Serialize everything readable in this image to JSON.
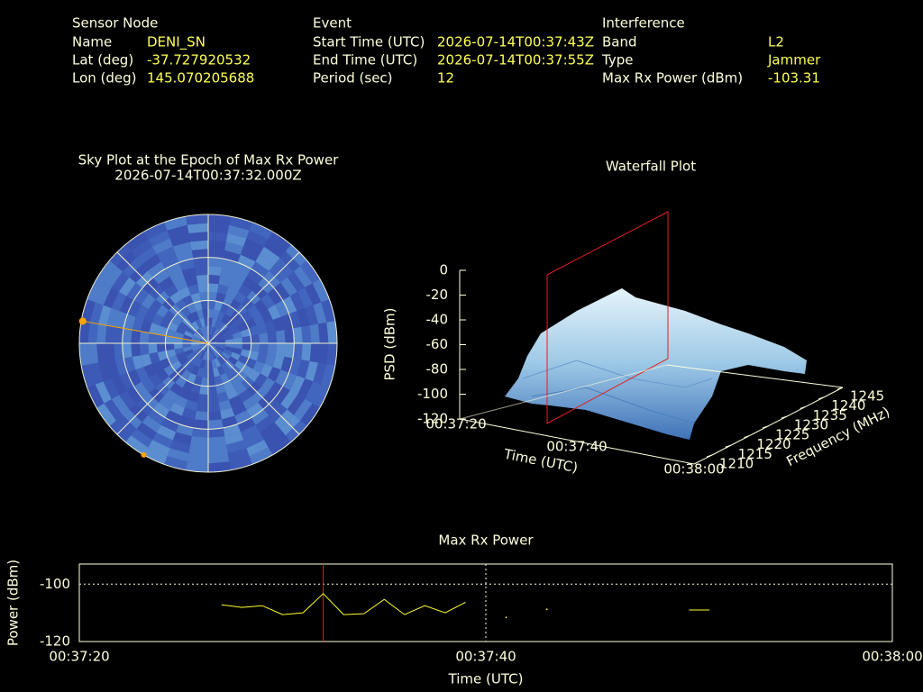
{
  "header": {
    "sensor": {
      "title": "Sensor Node",
      "fields": [
        {
          "label": "Name",
          "value": "DENI_SN"
        },
        {
          "label": "Lat (deg)",
          "value": "-37.727920532"
        },
        {
          "label": "Lon (deg)",
          "value": "145.070205688"
        }
      ]
    },
    "event": {
      "title": "Event",
      "fields": [
        {
          "label": "Start Time (UTC)",
          "value": "2026-07-14T00:37:43Z"
        },
        {
          "label": "End Time (UTC)",
          "value": "2026-07-14T00:37:55Z"
        },
        {
          "label": "Period (sec)",
          "value": "12"
        }
      ]
    },
    "interference": {
      "title": "Interference",
      "fields": [
        {
          "label": "Band",
          "value": "L2"
        },
        {
          "label": "Type",
          "value": "Jammer"
        },
        {
          "label": "Max Rx Power (dBm)",
          "value": "-103.31"
        }
      ]
    }
  },
  "chart_data": [
    {
      "type": "polar",
      "title": "Sky Plot at the Epoch of Max Rx Power",
      "subtitle": "2026-07-14T00:37:32.000Z",
      "rlim": [
        90,
        0
      ],
      "rticks": [
        60,
        30,
        0
      ],
      "azimuth": [
        280,
        210
      ],
      "elevation": [
        1,
        0
      ],
      "color": "#ffa500"
    },
    {
      "type": "surface",
      "title": "Waterfall Plot",
      "xlabel": "Time (UTC)",
      "ylabel": "Frequency (MHz)",
      "zlabel": "PSD (dBm)",
      "xticks": [
        "00:37:20",
        "00:37:40",
        "00:38:00"
      ],
      "ylim": [
        1210,
        1245
      ],
      "yticks": [
        1210,
        1215,
        1220,
        1225,
        1230,
        1235,
        1240,
        1245
      ],
      "zlim": [
        -120,
        0
      ],
      "zticks": [
        0,
        -20,
        -40,
        -60,
        -80,
        -100,
        -120
      ]
    },
    {
      "type": "line",
      "title": "Max Rx Power",
      "xlabel": "Time (UTC)",
      "ylabel": "Power (dBm)",
      "xlim": [
        "00:37:20",
        "00:38:00"
      ],
      "xticks": [
        "00:37:20",
        "00:37:40",
        "00:38:00"
      ],
      "ylim": [
        -120,
        -93
      ],
      "yticks": [
        -100,
        -120
      ],
      "grid": true,
      "color": "#ffff33",
      "x": [
        "00:37:27",
        "00:37:28",
        "00:37:29",
        "00:37:30",
        "00:37:31",
        "00:37:32",
        "00:37:33",
        "00:37:34",
        "00:37:35",
        "00:37:36",
        "00:37:37",
        "00:37:38",
        "00:37:39",
        "00:37:40",
        "00:37:41",
        "00:37:42",
        "00:37:43",
        "00:37:44",
        "00:37:45",
        "00:37:46",
        "00:37:47",
        "00:37:48",
        "00:37:49",
        "00:37:50",
        "00:37:51"
      ],
      "values": [
        -107.2,
        -108.1,
        -107.5,
        -110.6,
        -110.0,
        -103.3,
        -110.6,
        -110.3,
        -105.3,
        -110.6,
        -107.5,
        -110.0,
        -106.3,
        null,
        -111.6,
        null,
        -108.8,
        null,
        null,
        null,
        null,
        null,
        null,
        -109.0,
        -109.0
      ]
    }
  ]
}
